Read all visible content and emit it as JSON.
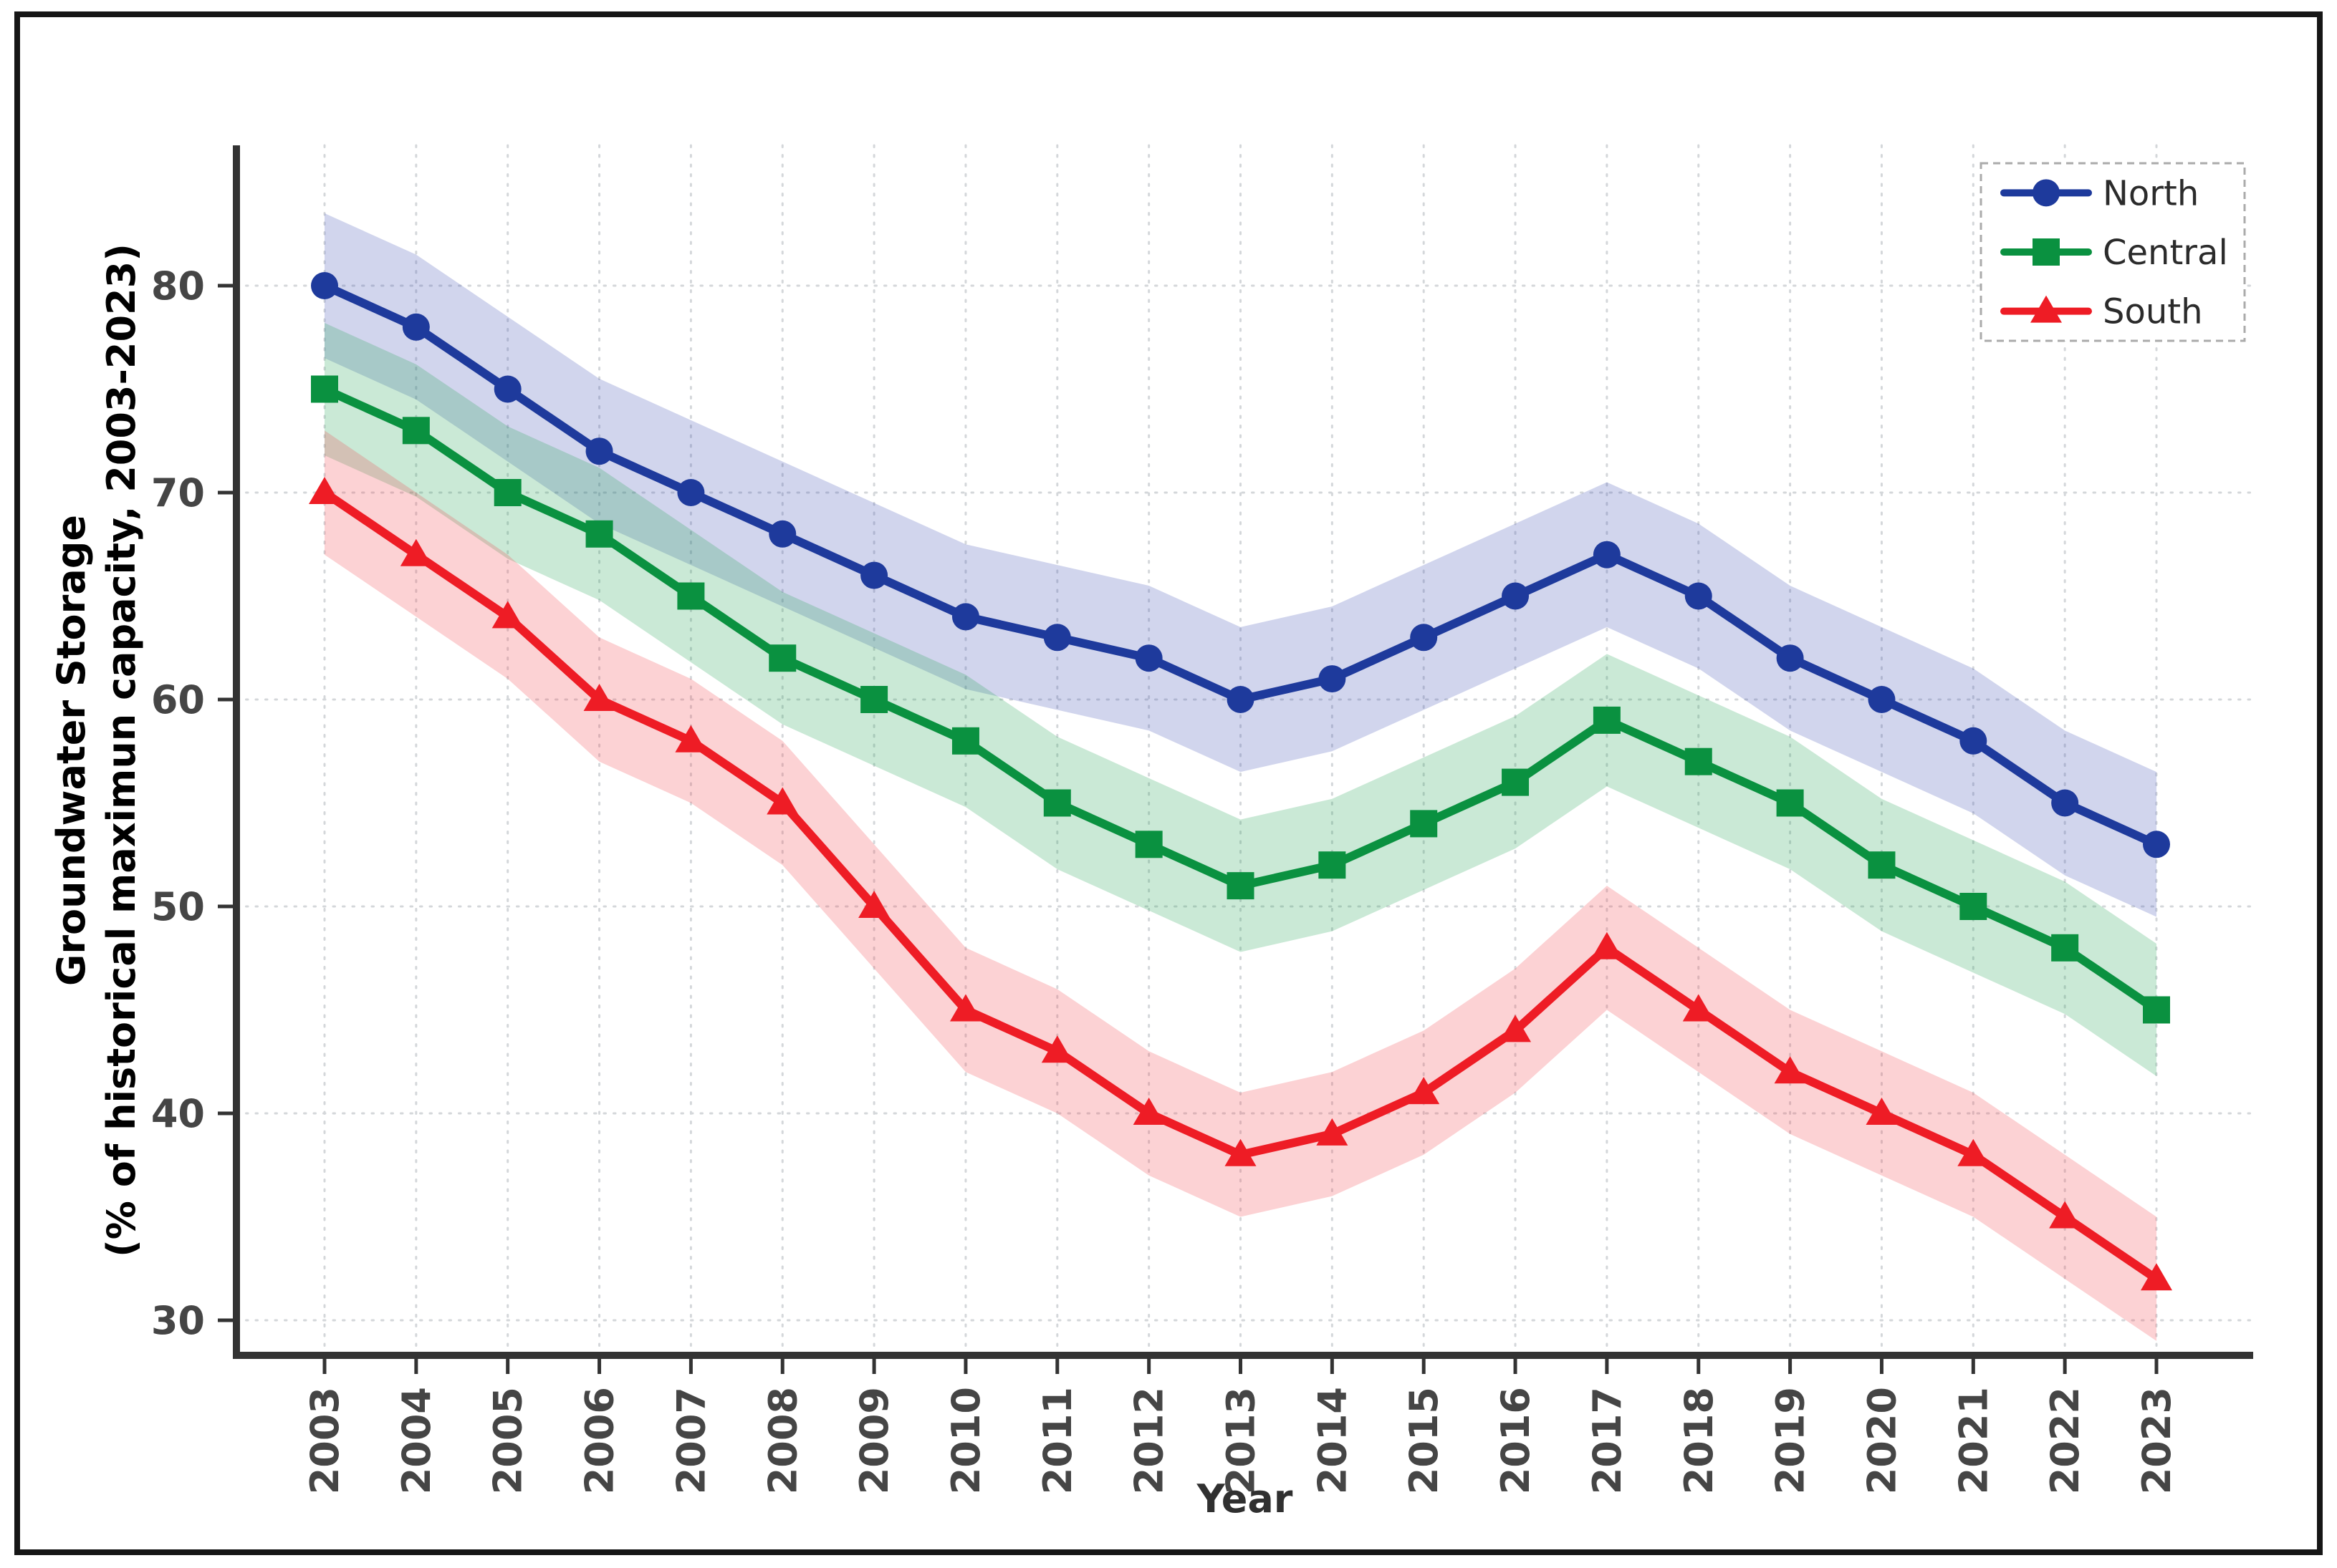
{
  "figure": {
    "background": "#ffffff",
    "outer_border_color": "#161616"
  },
  "chart_data": {
    "type": "line",
    "x": [
      2003,
      2004,
      2005,
      2006,
      2007,
      2008,
      2009,
      2010,
      2011,
      2012,
      2013,
      2014,
      2015,
      2016,
      2017,
      2018,
      2019,
      2020,
      2021,
      2022,
      2023
    ],
    "xlabel": "Year",
    "ylabel_line1": "Groundwater Storage",
    "ylabel_line2": "(% of historical maximun capacity, 2003-2023)",
    "yticks": [
      30,
      40,
      50,
      60,
      70,
      80
    ],
    "ylim": [
      28,
      87
    ],
    "grid": true,
    "grid_style": "dotted",
    "legend_position": "upper right",
    "legend_border": "dashed",
    "series": [
      {
        "name": "North",
        "marker": "circle",
        "color": "#1e3a9c",
        "band_color": "#3f51b5",
        "band_opacity": 0.24,
        "band_halfwidth": 3.5,
        "values": [
          80,
          78,
          75,
          72,
          70,
          68,
          66,
          64,
          63,
          62,
          60,
          61,
          63,
          65,
          67,
          65,
          62,
          60,
          58,
          55,
          53
        ]
      },
      {
        "name": "Central",
        "marker": "square",
        "color": "#0a9140",
        "band_color": "#22a554",
        "band_opacity": 0.24,
        "band_halfwidth": 3.2,
        "values": [
          75,
          73,
          70,
          68,
          65,
          62,
          60,
          58,
          55,
          53,
          51,
          52,
          54,
          56,
          59,
          57,
          55,
          52,
          50,
          48,
          45
        ]
      },
      {
        "name": "South",
        "marker": "triangle-up",
        "color": "#ee1c25",
        "band_color": "#f4434b",
        "band_opacity": 0.24,
        "band_halfwidth": 3.0,
        "values": [
          70,
          67,
          64,
          60,
          58,
          55,
          50,
          45,
          43,
          40,
          38,
          39,
          41,
          44,
          48,
          45,
          42,
          40,
          38,
          35,
          32
        ]
      }
    ]
  }
}
